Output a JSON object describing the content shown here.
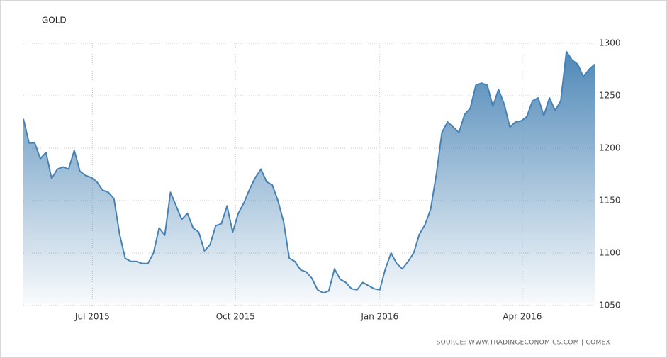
{
  "chart_data": {
    "type": "area",
    "title": "GOLD",
    "source": "SOURCE: WWW.TRADINGECONOMICS.COM | COMEX",
    "color": "#4682b4",
    "grid": true,
    "values": [
      1228,
      1205,
      1205,
      1190,
      1196,
      1171,
      1180,
      1182,
      1180,
      1198,
      1178,
      1174,
      1172,
      1168,
      1160,
      1158,
      1152,
      1118,
      1095,
      1092,
      1092,
      1090,
      1090,
      1100,
      1124,
      1117,
      1158,
      1145,
      1132,
      1138,
      1124,
      1120,
      1102,
      1108,
      1126,
      1128,
      1145,
      1120,
      1138,
      1148,
      1161,
      1172,
      1180,
      1168,
      1165,
      1150,
      1130,
      1095,
      1092,
      1084,
      1082,
      1076,
      1065,
      1062,
      1064,
      1085,
      1075,
      1072,
      1066,
      1065,
      1072,
      1069,
      1066,
      1065,
      1085,
      1100,
      1090,
      1085,
      1092,
      1100,
      1118,
      1127,
      1142,
      1175,
      1215,
      1225,
      1220,
      1215,
      1232,
      1238,
      1260,
      1262,
      1260,
      1240,
      1256,
      1242,
      1220,
      1225,
      1226,
      1230,
      1245,
      1248,
      1231,
      1248,
      1236,
      1245,
      1292,
      1284,
      1280,
      1268,
      1275,
      1280
    ],
    "xlim": [
      0,
      101
    ],
    "xticks": [
      {
        "value": 12.2,
        "label": "Jul 2015"
      },
      {
        "value": 37.5,
        "label": "Oct 2015"
      },
      {
        "value": 63.0,
        "label": "Jan 2016"
      },
      {
        "value": 88.2,
        "label": "Apr 2016"
      }
    ],
    "ylim": [
      1050,
      1300
    ],
    "yticks": [
      1050,
      1100,
      1150,
      1200,
      1250,
      1300
    ]
  }
}
